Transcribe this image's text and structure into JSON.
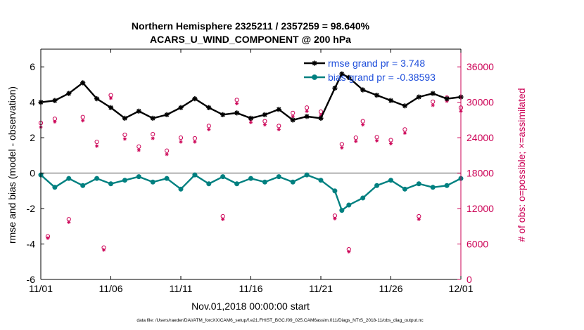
{
  "chart_data": {
    "type": "line",
    "title_lines": [
      "Northern Hemisphere 2325211 / 2357259 = 98.640%",
      "ACARS_U_WIND_COMPONENT @ 200 hPa"
    ],
    "xlabel": "Nov.01,2018 00:00:00 start",
    "ylabel_left": "rmse and bias (model - observation)",
    "ylabel_right": "# of obs: o=possible; ×=assimilated",
    "footer": "data file: /Users/raeder/DAI/ATM_forcXX/CAM6_setup/f.e21.FHIST_BGC.f09_025.CAM6assim.011/Diags_NTrS_2018-11/obs_diag_output.nc",
    "x_ticks": [
      0,
      5,
      10,
      15,
      20,
      25,
      30
    ],
    "x_tick_labels": [
      "11/01",
      "11/06",
      "11/11",
      "11/16",
      "11/21",
      "11/26",
      "12/01"
    ],
    "xlim": [
      0,
      30
    ],
    "ylim_left": [
      -6,
      7
    ],
    "y_ticks_left": [
      -6,
      -4,
      -2,
      0,
      2,
      4,
      6
    ],
    "y_tick_labels_left": [
      "-6",
      "-4",
      "-2",
      "0",
      "2",
      "4",
      "6"
    ],
    "ylim_right": [
      0,
      39000
    ],
    "y_ticks_right": [
      0,
      6000,
      12000,
      18000,
      24000,
      30000,
      36000
    ],
    "y_tick_labels_right": [
      "0",
      "6000",
      "12000",
      "18000",
      "24000",
      "30000",
      "36000"
    ],
    "zero_line": 0,
    "grid": false,
    "legend_position": "top-right",
    "series": [
      {
        "name": "rmse grand pr = 3.748",
        "color": "#000000",
        "marker": "star",
        "axis": "left",
        "points": [
          [
            0,
            4.0
          ],
          [
            1,
            4.1
          ],
          [
            2,
            4.5
          ],
          [
            3,
            5.1
          ],
          [
            4,
            4.2
          ],
          [
            5,
            3.7
          ],
          [
            6,
            3.1
          ],
          [
            7,
            3.5
          ],
          [
            8,
            3.1
          ],
          [
            9,
            3.3
          ],
          [
            10,
            3.7
          ],
          [
            11,
            4.2
          ],
          [
            12,
            3.7
          ],
          [
            13,
            3.3
          ],
          [
            14,
            3.4
          ],
          [
            15,
            3.1
          ],
          [
            16,
            3.3
          ],
          [
            17,
            3.6
          ],
          [
            18,
            3.0
          ],
          [
            19,
            3.2
          ],
          [
            20,
            3.1
          ],
          [
            21,
            4.8
          ],
          [
            21.5,
            5.6
          ],
          [
            22,
            5.4
          ],
          [
            23,
            4.7
          ],
          [
            24,
            4.4
          ],
          [
            25,
            4.1
          ],
          [
            26,
            3.8
          ],
          [
            27,
            4.3
          ],
          [
            28,
            4.5
          ],
          [
            29,
            4.2
          ],
          [
            30,
            4.3
          ]
        ]
      },
      {
        "name": "bias grand pr = -0.38593",
        "color": "#008080",
        "marker": "circle",
        "axis": "left",
        "points": [
          [
            0,
            -0.1
          ],
          [
            1,
            -0.8
          ],
          [
            2,
            -0.3
          ],
          [
            3,
            -0.7
          ],
          [
            4,
            -0.3
          ],
          [
            5,
            -0.6
          ],
          [
            6,
            -0.4
          ],
          [
            7,
            -0.2
          ],
          [
            8,
            -0.5
          ],
          [
            9,
            -0.3
          ],
          [
            10,
            -0.9
          ],
          [
            11,
            -0.1
          ],
          [
            12,
            -0.6
          ],
          [
            13,
            -0.2
          ],
          [
            14,
            -0.6
          ],
          [
            15,
            -0.3
          ],
          [
            16,
            -0.5
          ],
          [
            17,
            -0.2
          ],
          [
            18,
            -0.5
          ],
          [
            19,
            -0.1
          ],
          [
            20,
            -0.4
          ],
          [
            21,
            -1.0
          ],
          [
            21.5,
            -2.1
          ],
          [
            22,
            -1.8
          ],
          [
            23,
            -1.4
          ],
          [
            24,
            -0.7
          ],
          [
            25,
            -0.4
          ],
          [
            26,
            -0.9
          ],
          [
            27,
            -0.6
          ],
          [
            28,
            -0.8
          ],
          [
            29,
            -0.7
          ],
          [
            30,
            -0.3
          ]
        ]
      },
      {
        "name": "possible",
        "color": "#cc0055",
        "marker": "o",
        "axis": "right",
        "points": [
          [
            0,
            26500
          ],
          [
            0.5,
            7300
          ],
          [
            1,
            27200
          ],
          [
            2,
            10200
          ],
          [
            3,
            27500
          ],
          [
            4,
            23300
          ],
          [
            4.5,
            5400
          ],
          [
            5,
            31200
          ],
          [
            6,
            24500
          ],
          [
            7,
            22500
          ],
          [
            8,
            24600
          ],
          [
            9,
            21800
          ],
          [
            10,
            24000
          ],
          [
            11,
            23900
          ],
          [
            12,
            26000
          ],
          [
            13,
            10700
          ],
          [
            14,
            30400
          ],
          [
            15,
            27200
          ],
          [
            16,
            26800
          ],
          [
            17,
            26000
          ],
          [
            18,
            28200
          ],
          [
            19,
            29100
          ],
          [
            20,
            28400
          ],
          [
            21,
            10800
          ],
          [
            21.5,
            22900
          ],
          [
            22,
            5100
          ],
          [
            22.5,
            24000
          ],
          [
            23,
            26800
          ],
          [
            24,
            24100
          ],
          [
            25,
            23600
          ],
          [
            26,
            25400
          ],
          [
            27,
            10700
          ],
          [
            28,
            30100
          ],
          [
            29,
            30800
          ],
          [
            30,
            29100
          ]
        ]
      },
      {
        "name": "assimilated",
        "color": "#cc0055",
        "marker": "x",
        "axis": "right",
        "points": [
          [
            0,
            25800
          ],
          [
            0.5,
            7000
          ],
          [
            1,
            26700
          ],
          [
            2,
            9700
          ],
          [
            3,
            26900
          ],
          [
            4,
            22600
          ],
          [
            4.5,
            5000
          ],
          [
            5,
            30700
          ],
          [
            6,
            23800
          ],
          [
            7,
            21900
          ],
          [
            8,
            23900
          ],
          [
            9,
            21200
          ],
          [
            10,
            23300
          ],
          [
            11,
            23300
          ],
          [
            12,
            25400
          ],
          [
            13,
            10200
          ],
          [
            14,
            29800
          ],
          [
            15,
            26600
          ],
          [
            16,
            26200
          ],
          [
            17,
            25400
          ],
          [
            18,
            27600
          ],
          [
            19,
            28500
          ],
          [
            20,
            27800
          ],
          [
            21,
            10300
          ],
          [
            21.5,
            22300
          ],
          [
            22,
            4700
          ],
          [
            22.5,
            23400
          ],
          [
            23,
            26200
          ],
          [
            24,
            23500
          ],
          [
            25,
            23000
          ],
          [
            26,
            24800
          ],
          [
            27,
            10200
          ],
          [
            28,
            29500
          ],
          [
            29,
            30200
          ],
          [
            30,
            28500
          ]
        ]
      }
    ]
  }
}
